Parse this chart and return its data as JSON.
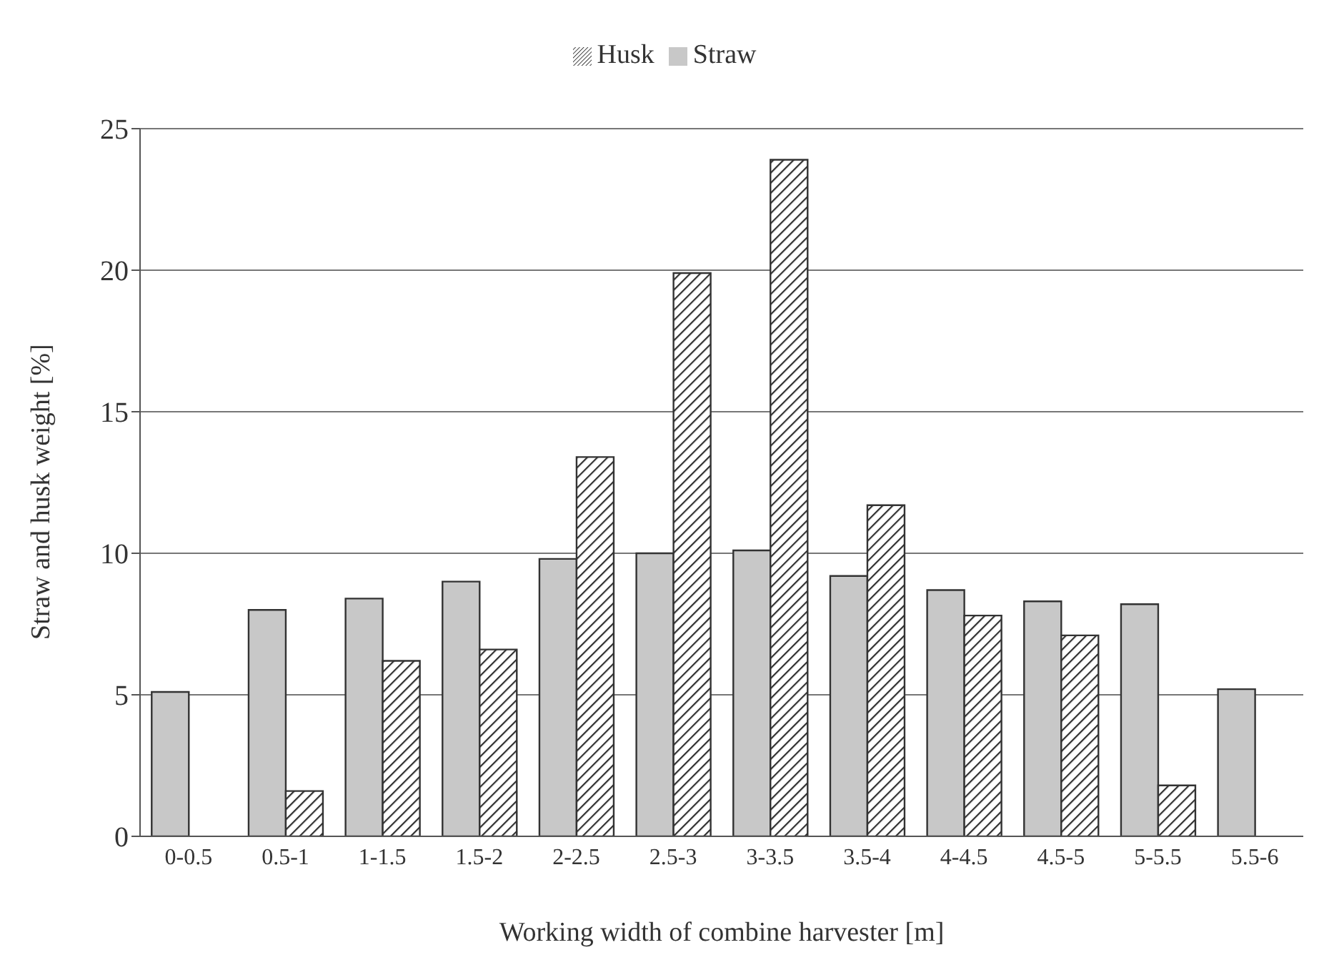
{
  "chart_data": {
    "type": "bar",
    "xlabel": "Working width of combine harvester [m]",
    "ylabel": "Straw and husk weight [%]",
    "categories": [
      "0-0.5",
      "0.5-1",
      "1-1.5",
      "1.5-2",
      "2-2.5",
      "2.5-3",
      "3-3.5",
      "3.5-4",
      "4-4.5",
      "4.5-5",
      "5-5.5",
      "5.5-6"
    ],
    "series": [
      {
        "name": "Straw",
        "color": "#c8c8c8",
        "values": [
          5.1,
          8.0,
          8.4,
          9.0,
          9.8,
          10.0,
          10.1,
          9.2,
          8.7,
          8.3,
          8.2,
          5.2
        ]
      },
      {
        "name": "Husk",
        "color": "#303030",
        "values": [
          null,
          1.6,
          6.2,
          6.6,
          13.4,
          19.9,
          23.9,
          11.7,
          7.8,
          7.1,
          1.8,
          null
        ]
      }
    ],
    "ylim": [
      0,
      25
    ],
    "yticks": [
      0,
      5,
      10,
      15,
      20,
      25
    ],
    "grid": "y",
    "legend": "top"
  }
}
